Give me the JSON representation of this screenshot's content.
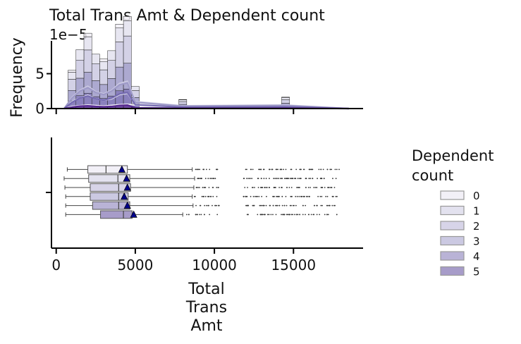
{
  "chart_data": [
    {
      "type": "histogram",
      "title": "Total Trans Amt & Dependent count",
      "ylabel": "Frequency",
      "y_scale_label": "1e−5",
      "yticks": [
        0,
        5
      ],
      "ylim": [
        0,
        9.5
      ],
      "xlim": [
        -300,
        19400
      ],
      "xticks": [
        0,
        5000,
        10000,
        15000
      ],
      "kde": true,
      "series": [
        {
          "name": "0",
          "color": "#f2f0f7",
          "bins": [
            [
              1000,
              0.3
            ],
            [
              2000,
              0.5
            ],
            [
              3000,
              0.35
            ],
            [
              4000,
              0.55
            ],
            [
              4500,
              0.6
            ],
            [
              8000,
              0.05
            ],
            [
              14500,
              0.08
            ]
          ]
        },
        {
          "name": "1",
          "color": "#e3e2ef",
          "bins": [
            [
              1000,
              1.0
            ],
            [
              1500,
              1.5
            ],
            [
              2000,
              1.9
            ],
            [
              2500,
              1.4
            ],
            [
              3000,
              1.2
            ],
            [
              3500,
              1.4
            ],
            [
              4000,
              2.0
            ],
            [
              4500,
              2.2
            ],
            [
              5000,
              0.6
            ],
            [
              8000,
              0.25
            ],
            [
              14500,
              0.3
            ]
          ]
        },
        {
          "name": "2",
          "color": "#cbc9e2",
          "bins": [
            [
              1000,
              1.6
            ],
            [
              1500,
              2.6
            ],
            [
              2000,
              3.2
            ],
            [
              2500,
              2.4
            ],
            [
              3000,
              2.1
            ],
            [
              3500,
              2.6
            ],
            [
              4000,
              3.6
            ],
            [
              4500,
              3.9
            ],
            [
              5000,
              1.0
            ],
            [
              8000,
              0.4
            ],
            [
              14500,
              0.5
            ]
          ]
        },
        {
          "name": "3",
          "color": "#9e9ac8",
          "bins": [
            [
              1000,
              1.5
            ],
            [
              1500,
              2.5
            ],
            [
              2000,
              3.0
            ],
            [
              2500,
              2.3
            ],
            [
              3000,
              2.0
            ],
            [
              3500,
              2.5
            ],
            [
              4000,
              3.4
            ],
            [
              4500,
              3.7
            ],
            [
              5000,
              0.9
            ],
            [
              8000,
              0.35
            ],
            [
              14500,
              0.45
            ]
          ]
        },
        {
          "name": "4",
          "color": "#756bb1",
          "bins": [
            [
              1000,
              0.9
            ],
            [
              1500,
              1.5
            ],
            [
              2000,
              1.8
            ],
            [
              2500,
              1.4
            ],
            [
              3000,
              1.2
            ],
            [
              3500,
              1.5
            ],
            [
              4000,
              2.1
            ],
            [
              4500,
              2.3
            ],
            [
              5000,
              0.55
            ],
            [
              8000,
              0.2
            ],
            [
              14500,
              0.25
            ]
          ]
        },
        {
          "name": "5",
          "color": "#54278f",
          "bins": [
            [
              1000,
              0.2
            ],
            [
              1500,
              0.35
            ],
            [
              2000,
              0.4
            ],
            [
              2500,
              0.3
            ],
            [
              3000,
              0.25
            ],
            [
              3500,
              0.3
            ],
            [
              4000,
              0.45
            ],
            [
              4500,
              0.5
            ],
            [
              5000,
              0.12
            ],
            [
              8000,
              0.05
            ],
            [
              14500,
              0.06
            ]
          ]
        }
      ]
    },
    {
      "type": "box",
      "xlabel": "Total\nTrans\nAmt",
      "xlim": [
        -300,
        19400
      ],
      "xticks": [
        0,
        5000,
        10000,
        15000
      ],
      "xtick_labels": [
        "0",
        "5000",
        "10000",
        "15000"
      ],
      "mean_marker": "triangle",
      "series": [
        {
          "name": "0",
          "q1": 2000,
          "median": 3150,
          "q3": 4500,
          "whisker_low": 700,
          "whisker_high": 8600,
          "mean": 4150
        },
        {
          "name": "1",
          "q1": 2050,
          "median": 3900,
          "q3": 4650,
          "whisker_low": 500,
          "whisker_high": 8750,
          "mean": 4450
        },
        {
          "name": "2",
          "q1": 2150,
          "median": 3950,
          "q3": 4700,
          "whisker_low": 550,
          "whisker_high": 8700,
          "mean": 4500
        },
        {
          "name": "3",
          "q1": 2150,
          "median": 3950,
          "q3": 4550,
          "whisker_low": 600,
          "whisker_high": 8600,
          "mean": 4300
        },
        {
          "name": "4",
          "q1": 2300,
          "median": 3950,
          "q3": 4650,
          "whisker_low": 600,
          "whisker_high": 8650,
          "mean": 4500
        },
        {
          "name": "5",
          "q1": 2800,
          "median": 4250,
          "q3": 4800,
          "whisker_low": 600,
          "whisker_high": 8000,
          "mean": 4900
        }
      ]
    }
  ],
  "legend": {
    "title": "Dependent\ncount",
    "placement": "right",
    "items": [
      {
        "label": "0",
        "color": "#f2f0f7"
      },
      {
        "label": "1",
        "color": "#e3e2ef"
      },
      {
        "label": "2",
        "color": "#d7d4e8"
      },
      {
        "label": "3",
        "color": "#cbc9e2"
      },
      {
        "label": "4",
        "color": "#b9b3d6"
      },
      {
        "label": "5",
        "color": "#a79cc9"
      }
    ]
  },
  "colors": {
    "axis": "#000000",
    "mean_marker": "#00008b",
    "outlier": "#333333"
  }
}
